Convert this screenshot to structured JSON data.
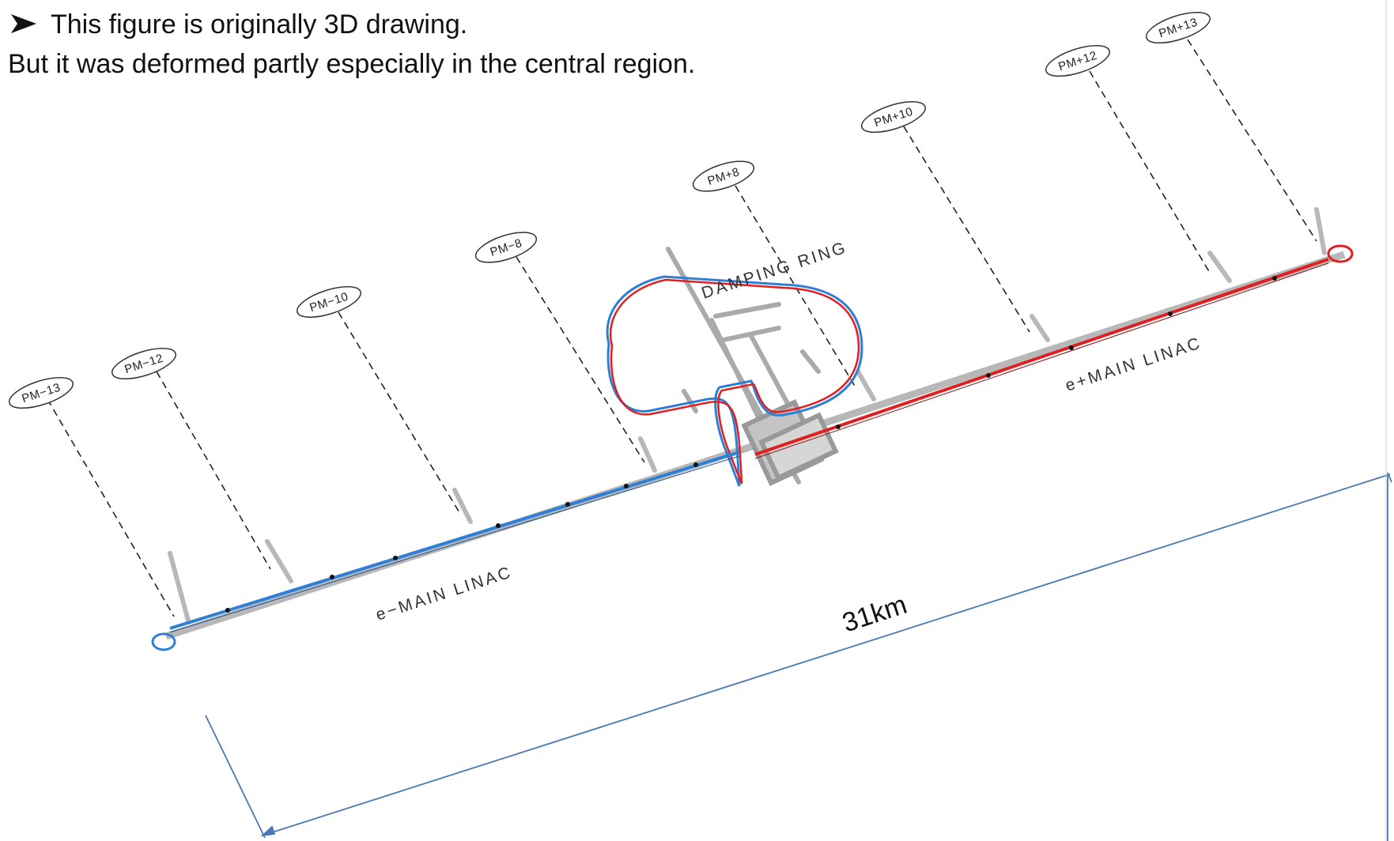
{
  "notes": {
    "line1": "This figure is originally 3D drawing.",
    "line2": "But it was deformed partly especially in the central region."
  },
  "labels": {
    "damping_ring": "DAMPING RING",
    "e_minus_linac": "e−MAIN LINAC",
    "e_plus_linac": "e+MAIN LINAC",
    "length": "31km"
  },
  "access_points": [
    "PM−13",
    "PM−12",
    "PM−10",
    "PM−8",
    "PM+8",
    "PM+10",
    "PM+12",
    "PM+13"
  ],
  "colors": {
    "electron_beam": "#2f7fd6",
    "positron_beam": "#e02020",
    "dimension_line": "#4a78b5",
    "structure": "#b8b8b8"
  }
}
